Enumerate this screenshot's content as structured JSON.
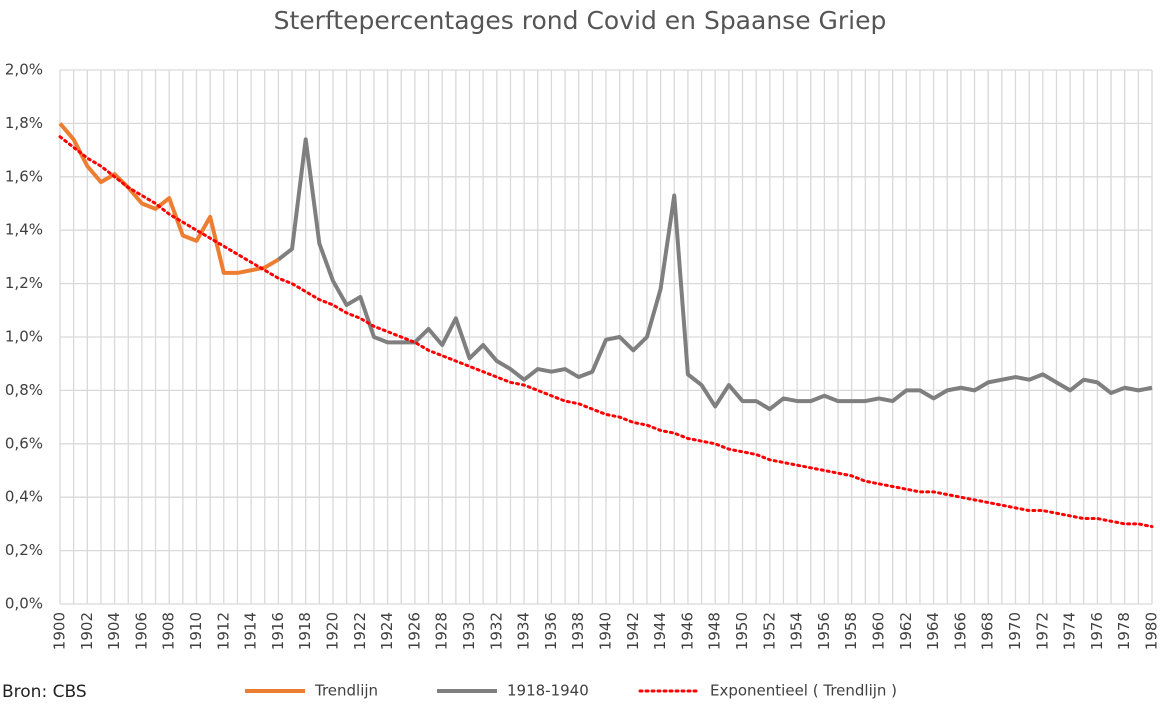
{
  "chart_data": {
    "type": "line",
    "title": "Sterftepercentages rond Covid en Spaanse Griep",
    "source": "Bron: CBS",
    "x": [
      1900,
      1901,
      1902,
      1903,
      1904,
      1905,
      1906,
      1907,
      1908,
      1909,
      1910,
      1911,
      1912,
      1913,
      1914,
      1915,
      1916,
      1917,
      1918,
      1919,
      1920,
      1921,
      1922,
      1923,
      1924,
      1925,
      1926,
      1927,
      1928,
      1929,
      1930,
      1931,
      1932,
      1933,
      1934,
      1935,
      1936,
      1937,
      1938,
      1939,
      1940,
      1941,
      1942,
      1943,
      1944,
      1945,
      1946,
      1947,
      1948,
      1949,
      1950,
      1951,
      1952,
      1953,
      1954,
      1955,
      1956,
      1957,
      1958,
      1959,
      1960,
      1961,
      1962,
      1963,
      1964,
      1965,
      1966,
      1967,
      1968,
      1969,
      1970,
      1971,
      1972,
      1973,
      1974,
      1975,
      1976,
      1977,
      1978,
      1979,
      1980
    ],
    "xlim": [
      1900,
      1980
    ],
    "xticks": [
      1900,
      1902,
      1904,
      1906,
      1908,
      1910,
      1912,
      1914,
      1916,
      1918,
      1920,
      1922,
      1924,
      1926,
      1928,
      1930,
      1932,
      1934,
      1936,
      1938,
      1940,
      1942,
      1944,
      1946,
      1948,
      1950,
      1952,
      1954,
      1956,
      1958,
      1960,
      1962,
      1964,
      1966,
      1968,
      1970,
      1972,
      1974,
      1976,
      1978,
      1980
    ],
    "ylim": [
      0,
      2.0
    ],
    "yticks": [
      {
        "value": 0,
        "label": "0,0%"
      },
      {
        "value": 0.2,
        "label": "0,2%"
      },
      {
        "value": 0.4,
        "label": "0,4%"
      },
      {
        "value": 0.6,
        "label": "0,6%"
      },
      {
        "value": 0.8,
        "label": "0,8%"
      },
      {
        "value": 1.0,
        "label": "1,0%"
      },
      {
        "value": 1.2,
        "label": "1,2%"
      },
      {
        "value": 1.4,
        "label": "1,4%"
      },
      {
        "value": 1.6,
        "label": "1,6%"
      },
      {
        "value": 1.8,
        "label": "1,8%"
      },
      {
        "value": 2.0,
        "label": "2,0%"
      }
    ],
    "grid": true,
    "series": [
      {
        "name": "Trendlijn",
        "color": "#ed7d31",
        "line_style": "solid",
        "values": [
          1.8,
          1.74,
          1.64,
          1.58,
          1.61,
          1.56,
          1.5,
          1.48,
          1.52,
          1.38,
          1.36,
          1.45,
          1.24,
          1.24,
          1.25,
          1.26,
          1.29,
          null,
          null,
          null,
          null,
          null,
          null,
          null,
          null,
          null,
          null,
          null,
          null,
          null,
          null,
          null,
          null,
          null,
          null,
          null,
          null,
          null,
          null,
          null,
          null,
          null,
          null,
          null,
          null,
          null,
          null,
          null,
          null,
          null,
          null,
          null,
          null,
          null,
          null,
          null,
          null,
          null,
          null,
          null,
          null,
          null,
          null,
          null,
          null,
          null,
          null,
          null,
          null,
          null,
          null,
          null,
          null,
          null,
          null,
          null,
          null,
          null,
          null,
          null,
          null
        ]
      },
      {
        "name": "1918-1940",
        "color": "#7f7f7f",
        "line_style": "solid",
        "values": [
          null,
          null,
          null,
          null,
          null,
          null,
          null,
          null,
          null,
          null,
          null,
          null,
          null,
          null,
          null,
          null,
          1.29,
          1.33,
          1.74,
          1.35,
          1.21,
          1.12,
          1.15,
          1.0,
          0.98,
          0.98,
          0.98,
          1.03,
          0.97,
          1.07,
          0.92,
          0.97,
          0.91,
          0.88,
          0.84,
          0.88,
          0.87,
          0.88,
          0.85,
          0.87,
          0.99,
          1.0,
          0.95,
          1.0,
          1.18,
          1.53,
          0.86,
          0.82,
          0.74,
          0.82,
          0.76,
          0.76,
          0.73,
          0.77,
          0.76,
          0.76,
          0.78,
          0.76,
          0.76,
          0.76,
          0.77,
          0.76,
          0.8,
          0.8,
          0.77,
          0.8,
          0.81,
          0.8,
          0.83,
          0.84,
          0.85,
          0.84,
          0.86,
          0.83,
          0.8,
          0.84,
          0.83,
          0.79,
          0.81,
          0.8,
          0.81
        ]
      },
      {
        "name": "Exponentieel ( Trendlijn )",
        "color": "#ff0000",
        "line_style": "dotted",
        "values": [
          1.75,
          1.71,
          1.67,
          1.64,
          1.6,
          1.56,
          1.53,
          1.5,
          1.46,
          1.43,
          1.4,
          1.37,
          1.34,
          1.31,
          1.28,
          1.25,
          1.22,
          1.2,
          1.17,
          1.14,
          1.12,
          1.09,
          1.07,
          1.04,
          1.02,
          1.0,
          0.98,
          0.95,
          0.93,
          0.91,
          0.89,
          0.87,
          0.85,
          0.83,
          0.82,
          0.8,
          0.78,
          0.76,
          0.75,
          0.73,
          0.71,
          0.7,
          0.68,
          0.67,
          0.65,
          0.64,
          0.62,
          0.61,
          0.6,
          0.58,
          0.57,
          0.56,
          0.54,
          0.53,
          0.52,
          0.51,
          0.5,
          0.49,
          0.48,
          0.46,
          0.45,
          0.44,
          0.43,
          0.42,
          0.42,
          0.41,
          0.4,
          0.39,
          0.38,
          0.37,
          0.36,
          0.35,
          0.35,
          0.34,
          0.33,
          0.32,
          0.32,
          0.31,
          0.3,
          0.3,
          0.29
        ]
      }
    ]
  }
}
